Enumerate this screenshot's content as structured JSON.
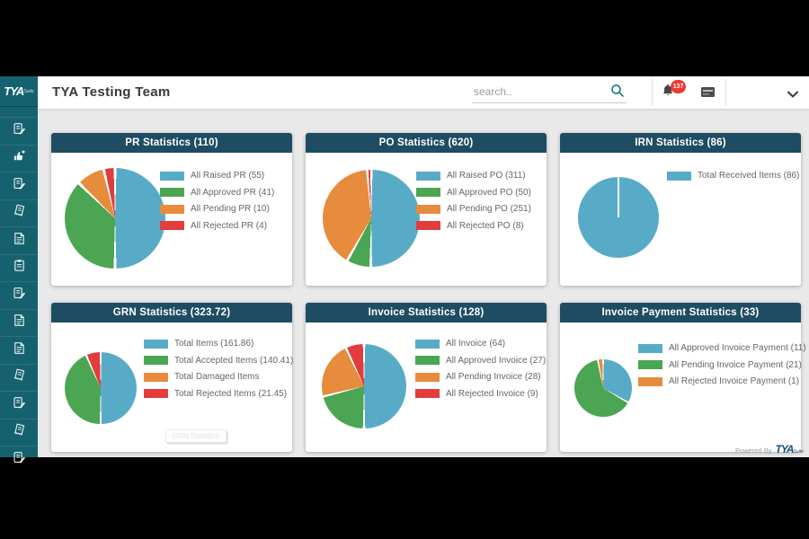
{
  "logo": {
    "brand": "TYA",
    "suffix": "Suite"
  },
  "header": {
    "team_title": "TYA Testing Team",
    "search_placeholder": "search..",
    "notification_count": "137"
  },
  "sidebar": {
    "items": [
      {
        "icon": "document-edit-icon"
      },
      {
        "icon": "approval-hand-icon"
      },
      {
        "icon": "document-edit-icon"
      },
      {
        "icon": "receipt-icon"
      },
      {
        "icon": "document-lines-icon"
      },
      {
        "icon": "clipboard-icon"
      },
      {
        "icon": "document-edit-icon"
      },
      {
        "icon": "document-lines-icon"
      },
      {
        "icon": "document-lines-icon"
      },
      {
        "icon": "receipt-icon"
      },
      {
        "icon": "document-edit-icon"
      },
      {
        "icon": "receipt-icon"
      },
      {
        "icon": "document-edit-icon"
      }
    ]
  },
  "grn_tooltip": "GRN Statistics",
  "footer": {
    "powered_by": "Powered By",
    "brand": "TYA",
    "suffix": "Suite"
  },
  "colors": {
    "sidebar": "#15626e",
    "card_header": "#1e4d63",
    "badge": "#ef3a30",
    "blue": "#58abc7",
    "green": "#4ba552",
    "orange": "#e78b3c",
    "red": "#e23c3c"
  },
  "chart_data": [
    {
      "type": "pie",
      "title": "PR Statistics (110)",
      "total": 110,
      "labels": [
        "All Raised PR (55)",
        "All Approved PR (41)",
        "All Pending PR (10)",
        "All Rejected PR (4)"
      ],
      "values": [
        55,
        41,
        10,
        4
      ],
      "colors": [
        "#58abc7",
        "#4ba552",
        "#e78b3c",
        "#e23c3c"
      ],
      "legend_position": "right"
    },
    {
      "type": "pie",
      "title": "PO Statistics (620)",
      "total": 620,
      "labels": [
        "All Raised PO (311)",
        "All Approved PO (50)",
        "All Pending PO (251)",
        "All Rejected PO (8)"
      ],
      "values": [
        311,
        50,
        251,
        8
      ],
      "colors": [
        "#58abc7",
        "#4ba552",
        "#e78b3c",
        "#e23c3c"
      ],
      "legend_position": "right"
    },
    {
      "type": "pie",
      "title": "IRN Statistics (86)",
      "total": 86,
      "labels": [
        "Total Received Items (86)"
      ],
      "values": [
        86
      ],
      "colors": [
        "#58abc7"
      ],
      "legend_position": "right"
    },
    {
      "type": "pie",
      "title": "GRN Statistics (323.72)",
      "total": 323.72,
      "labels": [
        "Total Items (161.86)",
        "Total Accepted Items (140.41)",
        "Total Damaged Items",
        "Total Rejected Items (21.45)"
      ],
      "values": [
        161.86,
        140.41,
        0,
        21.45
      ],
      "colors": [
        "#58abc7",
        "#4ba552",
        "#e78b3c",
        "#e23c3c"
      ],
      "legend_position": "right"
    },
    {
      "type": "pie",
      "title": "Invoice Statistics (128)",
      "total": 128,
      "labels": [
        "All Invoice (64)",
        "All Approved Invoice (27)",
        "All Pending Invoice (28)",
        "All Rejected Invoice (9)"
      ],
      "values": [
        64,
        27,
        28,
        9
      ],
      "colors": [
        "#58abc7",
        "#4ba552",
        "#e78b3c",
        "#e23c3c"
      ],
      "legend_position": "right"
    },
    {
      "type": "pie",
      "title": "Invoice Payment Statistics (33)",
      "total": 33,
      "labels": [
        "All Approved Invoice Payment (11)",
        "All Pending Invoice Payment (21)",
        "All Rejected Invoice Payment (1)"
      ],
      "values": [
        11,
        21,
        1
      ],
      "colors": [
        "#58abc7",
        "#4ba552",
        "#e78b3c"
      ],
      "legend_position": "right"
    }
  ]
}
